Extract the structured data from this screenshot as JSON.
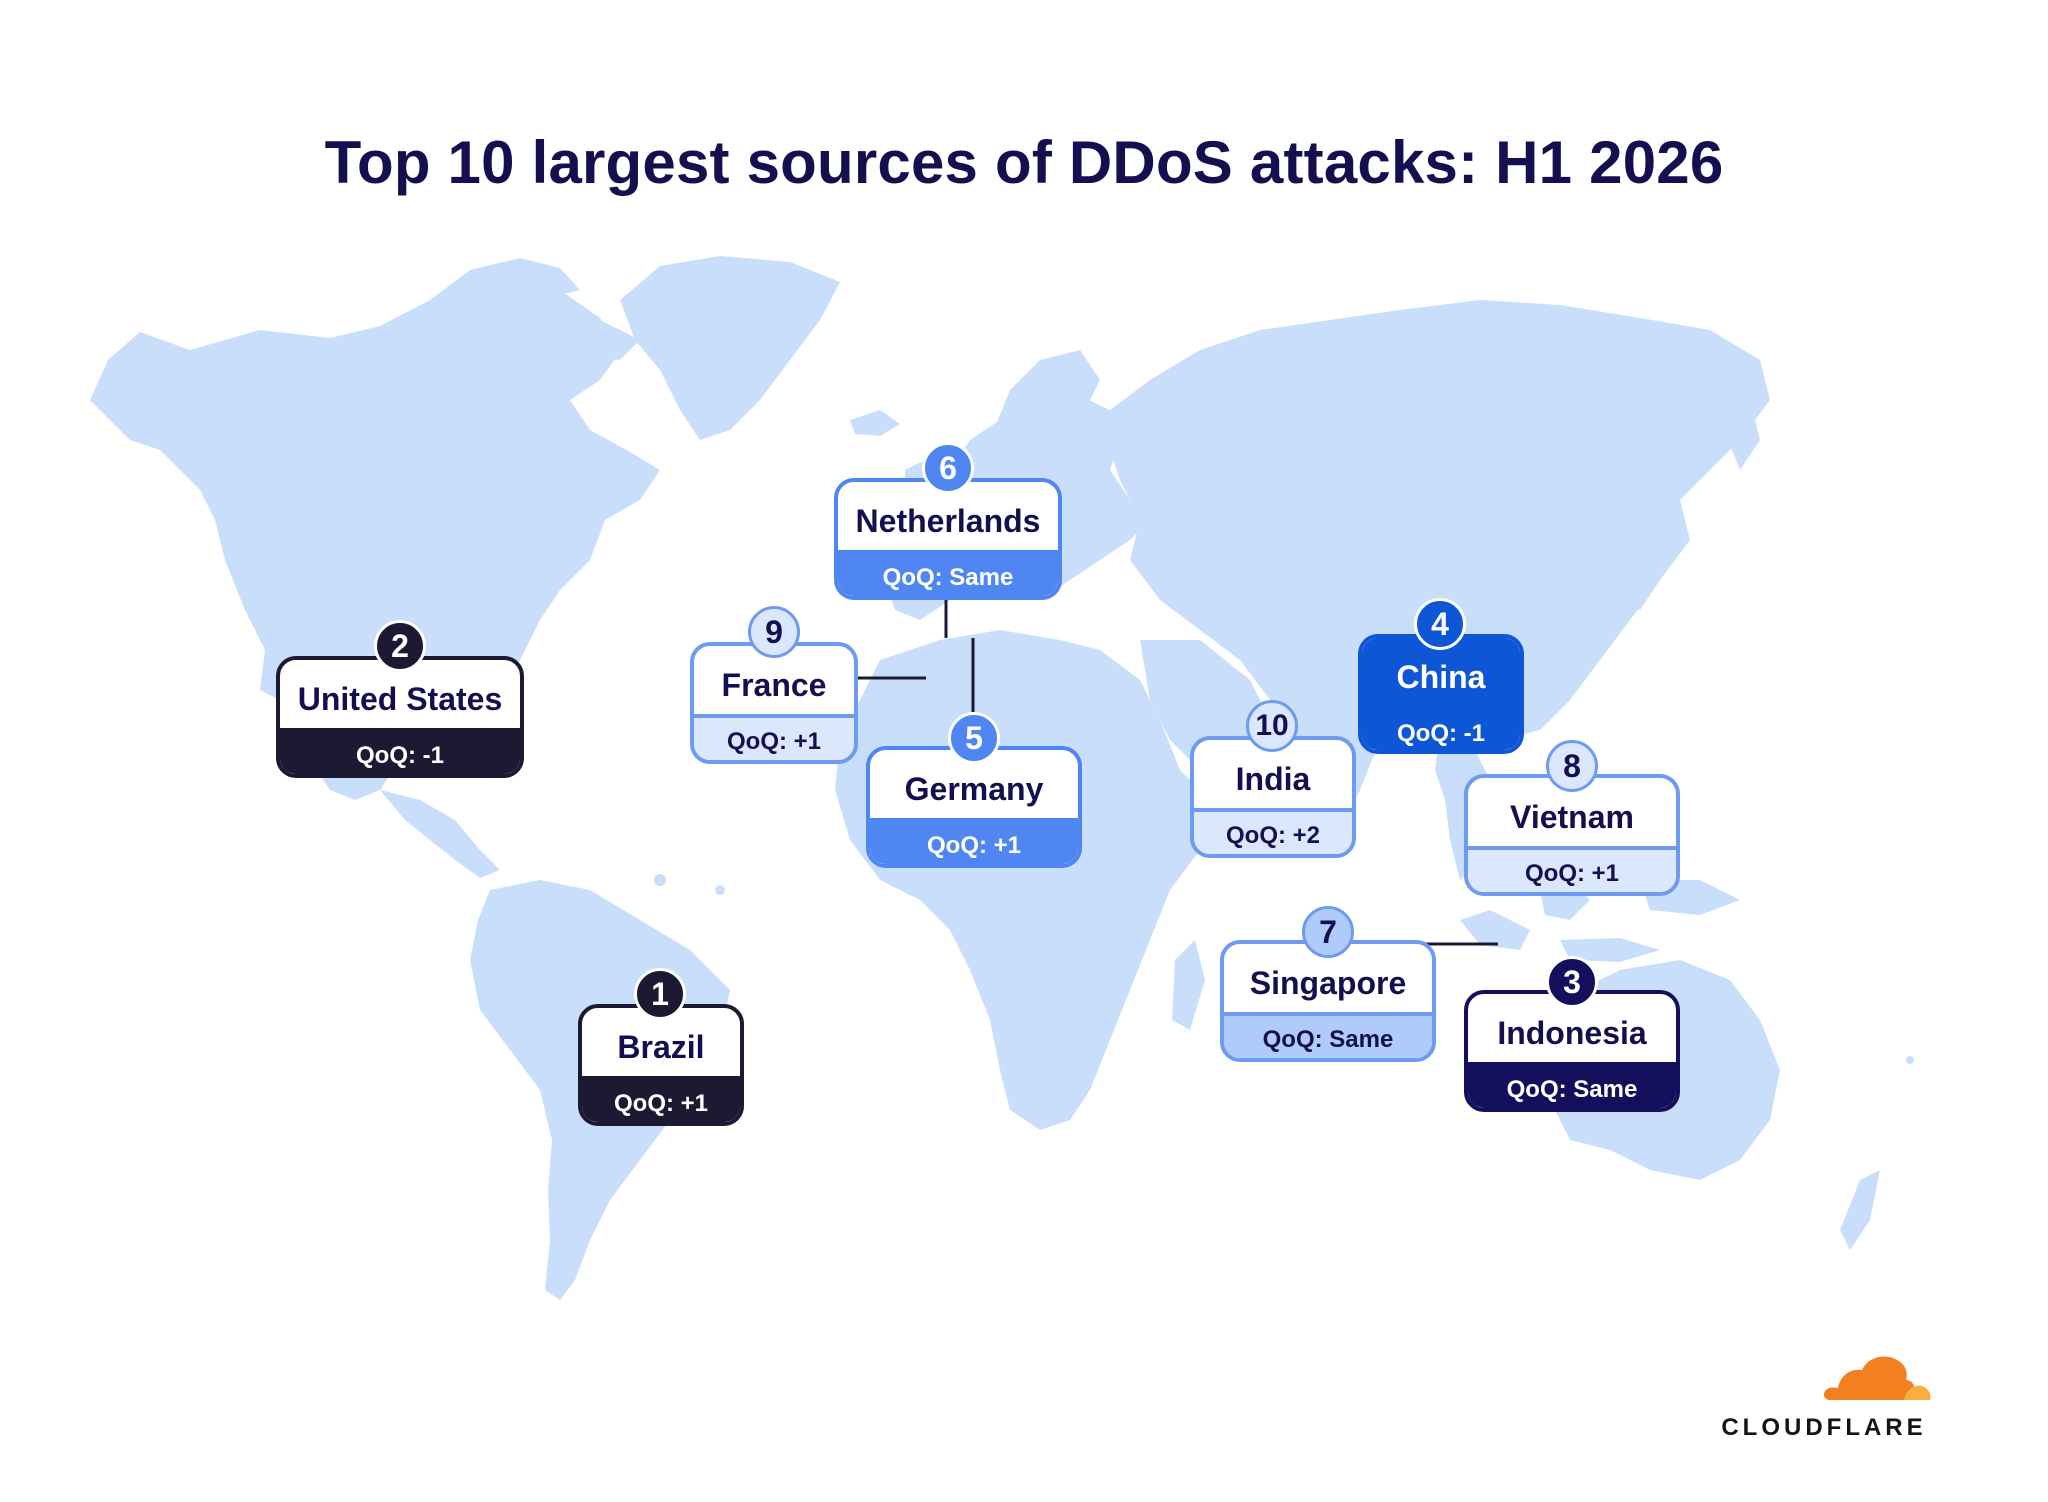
{
  "title": "Top 10 largest sources of DDoS attacks: H1 2026",
  "colors": {
    "land": "#c9defb",
    "title": "#14104f",
    "black": "#1c1a33",
    "navy": "#140f5c",
    "blue": "#0d57d6",
    "mid": "#4f86f2",
    "light": "#aecbfa",
    "pale": "#dbe7fc",
    "logo_orange": "#f38020",
    "logo_light_orange": "#faae40"
  },
  "rankings": [
    {
      "rank": "1",
      "country": "Brazil",
      "qoq": "QoQ: +1",
      "theme": "black"
    },
    {
      "rank": "2",
      "country": "United States",
      "qoq": "QoQ: -1",
      "theme": "black"
    },
    {
      "rank": "3",
      "country": "Indonesia",
      "qoq": "QoQ: Same",
      "theme": "navy"
    },
    {
      "rank": "4",
      "country": "China",
      "qoq": "QoQ: -1",
      "theme": "blue"
    },
    {
      "rank": "5",
      "country": "Germany",
      "qoq": "QoQ: +1",
      "theme": "mid"
    },
    {
      "rank": "6",
      "country": "Netherlands",
      "qoq": "QoQ: Same",
      "theme": "mid"
    },
    {
      "rank": "7",
      "country": "Singapore",
      "qoq": "QoQ: Same",
      "theme": "light"
    },
    {
      "rank": "8",
      "country": "Vietnam",
      "qoq": "QoQ: +1",
      "theme": "pale"
    },
    {
      "rank": "9",
      "country": "France",
      "qoq": "QoQ: +1",
      "theme": "pale"
    },
    {
      "rank": "10",
      "country": "India",
      "qoq": "QoQ: +2",
      "theme": "pale"
    }
  ],
  "logo": {
    "wordmark": "CLOUDFLARE"
  }
}
